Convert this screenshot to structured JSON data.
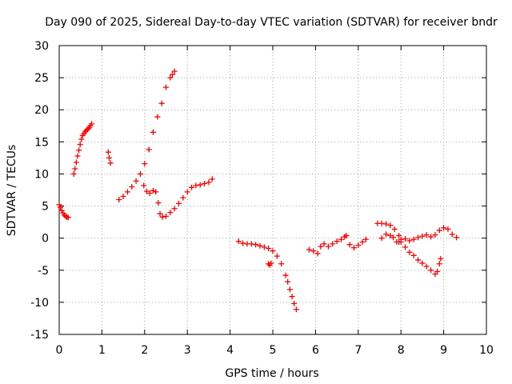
{
  "chart_data": {
    "type": "scatter",
    "title": "Day 090 of 2025, Sidereal Day-to-day VTEC variation (SDTVAR) for receiver bndr",
    "xlabel": "GPS time / hours",
    "ylabel": "SDTVAR / TECUs",
    "xlim": [
      0,
      10
    ],
    "ylim": [
      -15,
      30
    ],
    "xticks": [
      "0",
      "1",
      "2",
      "3",
      "4",
      "5",
      "6",
      "7",
      "8",
      "9",
      "10"
    ],
    "yticks": [
      "30",
      "25",
      "20",
      "15",
      "10",
      "5",
      "0",
      "-5",
      "-10",
      "-15"
    ],
    "grid": true,
    "marker": "plus",
    "color": "#ff0000",
    "series": [
      {
        "x": [
          0.0,
          0.03,
          0.06,
          0.09,
          0.12,
          0.15,
          0.18,
          0.21
        ],
        "y": [
          5.2,
          4.8,
          4.3,
          3.9,
          3.6,
          3.4,
          3.3,
          3.2
        ]
      },
      {
        "x": [
          0.34,
          0.37,
          0.4,
          0.43,
          0.46,
          0.49,
          0.52,
          0.55,
          0.58,
          0.61,
          0.64,
          0.67,
          0.7,
          0.73,
          0.76
        ],
        "y": [
          10.0,
          10.8,
          11.8,
          12.8,
          13.7,
          14.6,
          15.4,
          16.0,
          16.3,
          16.6,
          16.8,
          17.0,
          17.2,
          17.5,
          17.8
        ]
      },
      {
        "x": [
          1.15,
          1.17,
          1.2
        ],
        "y": [
          13.4,
          12.5,
          11.7
        ]
      },
      {
        "x": [
          1.4,
          1.5,
          1.6,
          1.7,
          1.8,
          1.9,
          2.0,
          2.1,
          2.2,
          2.3,
          2.4,
          2.5,
          2.6,
          2.65,
          2.7
        ],
        "y": [
          6.0,
          6.5,
          7.2,
          8.0,
          8.9,
          10.0,
          11.6,
          13.8,
          16.5,
          18.9,
          21.0,
          23.5,
          25.0,
          25.5,
          26.0
        ]
      },
      {
        "x": [
          1.98,
          2.05,
          2.12,
          2.2,
          2.26,
          2.32,
          2.36,
          2.42,
          2.5,
          2.6,
          2.7,
          2.8,
          2.9,
          3.0,
          3.1,
          3.2,
          3.3,
          3.4,
          3.5,
          3.58
        ],
        "y": [
          8.2,
          7.3,
          7.0,
          7.4,
          7.2,
          5.5,
          3.8,
          3.3,
          3.4,
          4.0,
          4.6,
          5.4,
          6.3,
          7.2,
          7.9,
          8.2,
          8.3,
          8.5,
          8.7,
          9.2
        ]
      },
      {
        "x": [
          4.2,
          4.3,
          4.4,
          4.5,
          4.6,
          4.7,
          4.8,
          4.9,
          5.0,
          5.1,
          5.2,
          5.3,
          5.35,
          5.4,
          5.45,
          5.5,
          5.55
        ],
        "y": [
          -0.5,
          -0.8,
          -0.9,
          -0.9,
          -1.0,
          -1.2,
          -1.4,
          -1.6,
          -2.0,
          -2.8,
          -4.0,
          -5.8,
          -6.8,
          -8.0,
          -9.1,
          -10.2,
          -11.1
        ]
      },
      {
        "x": [
          4.9,
          4.93,
          4.96
        ],
        "y": [
          -4.0,
          -4.2,
          -3.9
        ]
      },
      {
        "x": [
          5.85,
          5.95,
          6.05,
          6.12,
          6.2,
          6.3,
          6.4,
          6.5,
          6.6,
          6.68,
          6.72,
          6.8,
          6.9,
          7.0,
          7.1,
          7.18
        ],
        "y": [
          -1.8,
          -2.0,
          -2.4,
          -1.3,
          -0.9,
          -1.3,
          -0.9,
          -0.5,
          -0.2,
          0.2,
          0.4,
          -1.0,
          -1.5,
          -1.1,
          -0.6,
          -0.2
        ]
      },
      {
        "x": [
          7.45,
          7.55,
          7.65,
          7.75,
          7.85,
          7.95,
          8.0,
          8.1,
          8.2,
          8.3,
          8.4,
          8.5,
          8.6,
          8.7,
          8.8,
          8.85,
          8.9,
          8.93
        ],
        "y": [
          2.3,
          2.3,
          2.2,
          2.0,
          1.4,
          0.4,
          -0.6,
          -1.4,
          -2.2,
          -2.7,
          -3.4,
          -3.9,
          -4.4,
          -5.0,
          -5.6,
          -5.2,
          -4.0,
          -3.2
        ]
      },
      {
        "x": [
          7.55,
          7.65,
          7.75,
          7.82,
          7.9,
          7.95,
          8.0,
          8.1,
          8.2,
          8.3,
          8.4,
          8.5,
          8.6,
          8.7,
          8.8,
          8.9,
          9.0,
          9.1,
          9.2,
          9.3
        ],
        "y": [
          0.0,
          0.6,
          0.4,
          0.1,
          -0.6,
          -0.6,
          -0.2,
          -0.1,
          -0.4,
          -0.2,
          0.1,
          0.3,
          0.5,
          0.2,
          0.5,
          1.2,
          1.6,
          1.4,
          0.6,
          0.1
        ]
      }
    ]
  }
}
